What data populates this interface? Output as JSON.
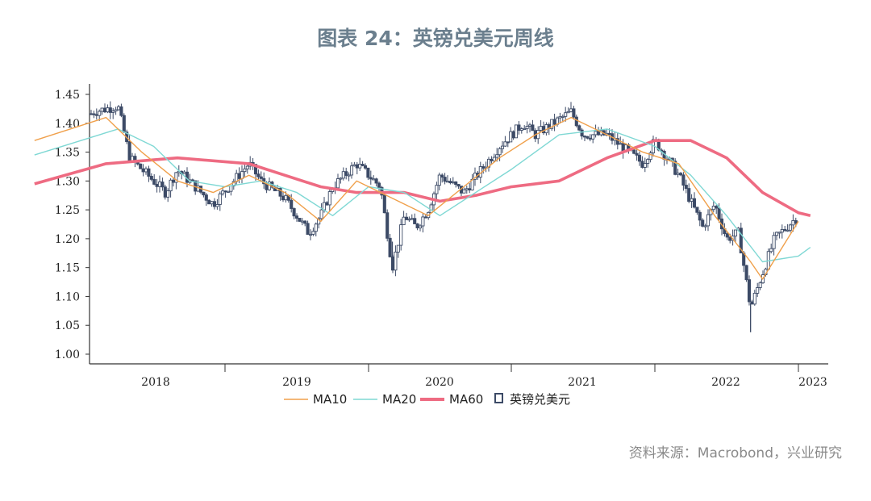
{
  "figure": {
    "title": "图表 24：英镑兑美元周线",
    "source": "资料来源：Macrobond，兴业研究"
  },
  "chart_data": {
    "type": "candlestick",
    "y_ticks": [
      "1.45",
      "1.40",
      "1.35",
      "1.30",
      "1.25",
      "1.20",
      "1.15",
      "1.10",
      "1.05",
      "1.00"
    ],
    "ylim": [
      1.0,
      1.45
    ],
    "x_ticks": [
      "2018",
      "2019",
      "2020",
      "2021",
      "2022",
      "2023"
    ],
    "grid": false,
    "legend_position": "bottom",
    "legend": [
      {
        "name": "MA10",
        "color": "#f0a04b",
        "style": "line"
      },
      {
        "name": "MA20",
        "color": "#7fd8d4",
        "style": "line"
      },
      {
        "name": "MA60",
        "color": "#ee6b82",
        "style": "thick-line"
      },
      {
        "name": "英镑兑美元",
        "color": "#3c4a66",
        "style": "candle"
      }
    ],
    "close_keypoints": [
      {
        "date": "2017-09",
        "close": 1.4
      },
      {
        "date": "2017-11",
        "close": 1.38
      },
      {
        "date": "2018-02",
        "close": 1.42
      },
      {
        "date": "2018-04",
        "close": 1.43
      },
      {
        "date": "2018-05",
        "close": 1.34
      },
      {
        "date": "2018-08",
        "close": 1.28
      },
      {
        "date": "2018-09",
        "close": 1.32
      },
      {
        "date": "2018-12",
        "close": 1.26
      },
      {
        "date": "2019-03",
        "close": 1.33
      },
      {
        "date": "2019-04",
        "close": 1.3
      },
      {
        "date": "2019-06",
        "close": 1.27
      },
      {
        "date": "2019-08",
        "close": 1.21
      },
      {
        "date": "2019-09",
        "close": 1.24
      },
      {
        "date": "2019-10",
        "close": 1.29
      },
      {
        "date": "2019-12",
        "close": 1.33
      },
      {
        "date": "2020-02",
        "close": 1.29
      },
      {
        "date": "2020-03",
        "close": 1.15
      },
      {
        "date": "2020-04",
        "close": 1.24
      },
      {
        "date": "2020-05",
        "close": 1.22
      },
      {
        "date": "2020-06",
        "close": 1.25
      },
      {
        "date": "2020-07",
        "close": 1.31
      },
      {
        "date": "2020-09",
        "close": 1.28
      },
      {
        "date": "2020-12",
        "close": 1.36
      },
      {
        "date": "2021-02",
        "close": 1.4
      },
      {
        "date": "2021-03",
        "close": 1.38
      },
      {
        "date": "2021-06",
        "close": 1.42
      },
      {
        "date": "2021-07",
        "close": 1.38
      },
      {
        "date": "2021-09",
        "close": 1.38
      },
      {
        "date": "2021-12",
        "close": 1.33
      },
      {
        "date": "2022-01",
        "close": 1.37
      },
      {
        "date": "2022-03",
        "close": 1.31
      },
      {
        "date": "2022-05",
        "close": 1.22
      },
      {
        "date": "2022-06",
        "close": 1.26
      },
      {
        "date": "2022-07",
        "close": 1.2
      },
      {
        "date": "2022-08",
        "close": 1.21
      },
      {
        "date": "2022-09",
        "close": 1.08
      },
      {
        "date": "2022-10",
        "close": 1.14
      },
      {
        "date": "2022-11",
        "close": 1.2
      },
      {
        "date": "2022-12",
        "close": 1.22
      },
      {
        "date": "2023-01",
        "close": 1.24
      }
    ],
    "ma_keypoints": {
      "MA10": [
        {
          "date": "2017-09",
          "value": 1.37
        },
        {
          "date": "2018-03",
          "value": 1.41
        },
        {
          "date": "2018-06",
          "value": 1.35
        },
        {
          "date": "2018-09",
          "value": 1.3
        },
        {
          "date": "2018-12",
          "value": 1.28
        },
        {
          "date": "2019-03",
          "value": 1.31
        },
        {
          "date": "2019-06",
          "value": 1.28
        },
        {
          "date": "2019-09",
          "value": 1.23
        },
        {
          "date": "2019-12",
          "value": 1.3
        },
        {
          "date": "2020-03",
          "value": 1.27
        },
        {
          "date": "2020-06",
          "value": 1.24
        },
        {
          "date": "2020-09",
          "value": 1.29
        },
        {
          "date": "2020-12",
          "value": 1.34
        },
        {
          "date": "2021-03",
          "value": 1.38
        },
        {
          "date": "2021-06",
          "value": 1.41
        },
        {
          "date": "2021-09",
          "value": 1.38
        },
        {
          "date": "2021-12",
          "value": 1.35
        },
        {
          "date": "2022-03",
          "value": 1.33
        },
        {
          "date": "2022-06",
          "value": 1.24
        },
        {
          "date": "2022-09",
          "value": 1.16
        },
        {
          "date": "2022-10",
          "value": 1.13
        },
        {
          "date": "2023-01",
          "value": 1.23
        }
      ],
      "MA20": [
        {
          "date": "2017-09",
          "value": 1.345
        },
        {
          "date": "2018-04",
          "value": 1.39
        },
        {
          "date": "2018-07",
          "value": 1.36
        },
        {
          "date": "2018-10",
          "value": 1.3
        },
        {
          "date": "2019-01",
          "value": 1.29
        },
        {
          "date": "2019-04",
          "value": 1.3
        },
        {
          "date": "2019-07",
          "value": 1.28
        },
        {
          "date": "2019-10",
          "value": 1.24
        },
        {
          "date": "2020-01",
          "value": 1.29
        },
        {
          "date": "2020-04",
          "value": 1.28
        },
        {
          "date": "2020-07",
          "value": 1.24
        },
        {
          "date": "2020-10",
          "value": 1.28
        },
        {
          "date": "2021-01",
          "value": 1.32
        },
        {
          "date": "2021-05",
          "value": 1.38
        },
        {
          "date": "2021-09",
          "value": 1.39
        },
        {
          "date": "2022-01",
          "value": 1.36
        },
        {
          "date": "2022-04",
          "value": 1.31
        },
        {
          "date": "2022-07",
          "value": 1.24
        },
        {
          "date": "2022-10",
          "value": 1.16
        },
        {
          "date": "2023-01",
          "value": 1.17
        },
        {
          "date": "2023-02",
          "value": 1.185
        }
      ],
      "MA60": [
        {
          "date": "2017-09",
          "value": 1.295
        },
        {
          "date": "2018-03",
          "value": 1.33
        },
        {
          "date": "2018-09",
          "value": 1.34
        },
        {
          "date": "2019-03",
          "value": 1.33
        },
        {
          "date": "2019-09",
          "value": 1.29
        },
        {
          "date": "2019-12",
          "value": 1.28
        },
        {
          "date": "2020-04",
          "value": 1.28
        },
        {
          "date": "2020-07",
          "value": 1.265
        },
        {
          "date": "2020-10",
          "value": 1.275
        },
        {
          "date": "2021-01",
          "value": 1.29
        },
        {
          "date": "2021-05",
          "value": 1.3
        },
        {
          "date": "2021-09",
          "value": 1.34
        },
        {
          "date": "2022-01",
          "value": 1.37
        },
        {
          "date": "2022-04",
          "value": 1.37
        },
        {
          "date": "2022-07",
          "value": 1.34
        },
        {
          "date": "2022-10",
          "value": 1.28
        },
        {
          "date": "2023-01",
          "value": 1.245
        },
        {
          "date": "2023-02",
          "value": 1.24
        }
      ]
    }
  }
}
